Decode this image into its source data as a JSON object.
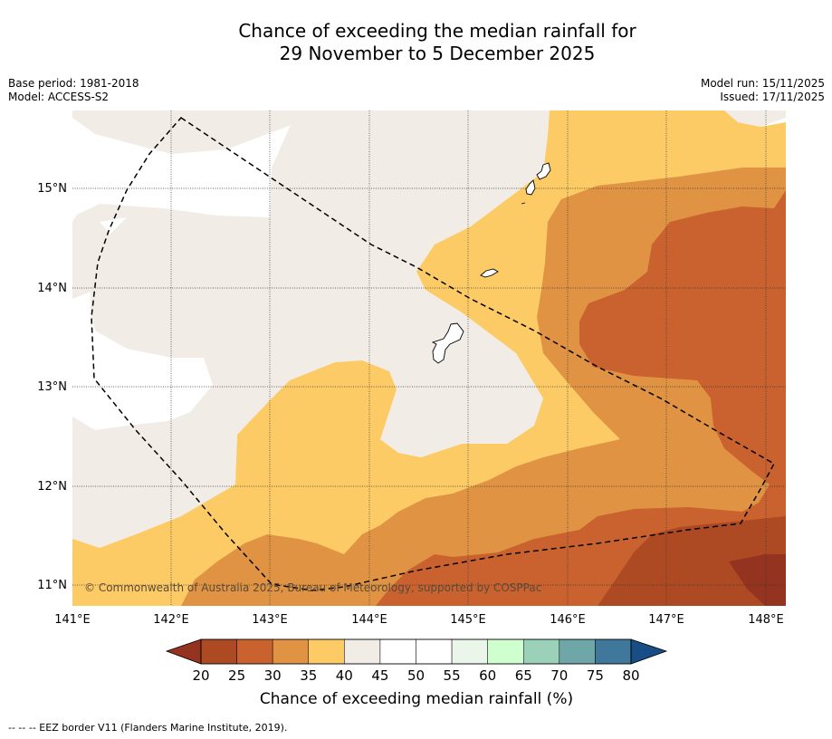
{
  "header": {
    "title_line1": "Chance of exceeding the median rainfall for",
    "title_line2": "29 November to 5 December 2025",
    "base_period": "Base period: 1981-2018",
    "model": "Model: ACCESS-S2",
    "model_run": "Model run: 15/11/2025",
    "issued": "Issued: 17/11/2025"
  },
  "map": {
    "x_ticks": [
      "141°E",
      "142°E",
      "143°E",
      "144°E",
      "145°E",
      "146°E",
      "147°E",
      "148°E"
    ],
    "y_ticks": [
      "15°N",
      "14°N",
      "13°N",
      "12°N",
      "11°N"
    ],
    "lon_range": [
      141,
      148.2
    ],
    "lat_range": [
      10.8,
      15.8
    ],
    "copyright": "© Commonwealth of Australia 2025, Bureau of Meteorology, supported by COSPPac",
    "islands": [
      "Guam",
      "Rota",
      "Tinian",
      "Saipan"
    ],
    "eez_boundary": "Guam / Northern Mariana Islands EEZ"
  },
  "legend": {
    "ticks": [
      "20",
      "25",
      "30",
      "35",
      "40",
      "45",
      "50",
      "55",
      "60",
      "65",
      "70",
      "75",
      "80"
    ],
    "colors": [
      "#ad4a24",
      "#c9622f",
      "#e09443",
      "#fdcb65",
      "#f1ece6",
      "#ffffff",
      "#ffffff",
      "#e9f6e9",
      "#cfffcf",
      "#9bd0b9",
      "#6fa6a8",
      "#40789b"
    ],
    "under_color": "#94331f",
    "over_color": "#184e85",
    "label": "Chance of exceeding median rainfall (%)"
  },
  "footer": {
    "note": "--  --  -- EEZ border V11 (Flanders Marine Institute, 2019)."
  }
}
